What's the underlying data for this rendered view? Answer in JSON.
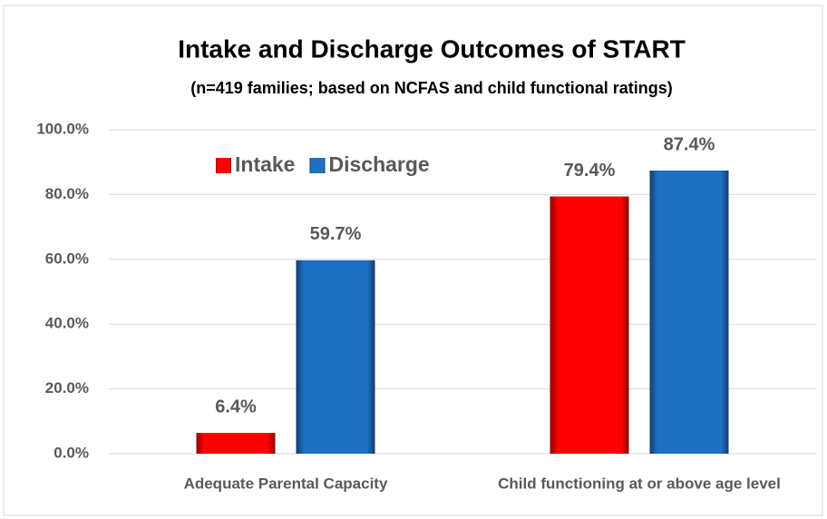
{
  "chart_data": {
    "type": "bar",
    "title": "Intake and Discharge Outcomes of START",
    "subtitle": "(n=419 families; based on NCFAS and child functional ratings)",
    "categories": [
      "Adequate Parental Capacity",
      "Child functioning at or above age level"
    ],
    "series": [
      {
        "name": "Intake",
        "color": "#ff0000",
        "values": [
          6.4,
          79.4
        ],
        "value_labels": [
          "6.4%",
          "79.4%"
        ]
      },
      {
        "name": "Discharge",
        "color": "#1f6fc5",
        "values": [
          59.7,
          87.4
        ],
        "value_labels": [
          "59.7%",
          "87.4%"
        ]
      }
    ],
    "ylim": [
      0,
      100
    ],
    "yticks": [
      {
        "value": 0,
        "label": "0.0%"
      },
      {
        "value": 20,
        "label": "20.0%"
      },
      {
        "value": 40,
        "label": "40.0%"
      },
      {
        "value": 60,
        "label": "60.0%"
      },
      {
        "value": 80,
        "label": "80.0%"
      },
      {
        "value": 100,
        "label": "100.0%"
      }
    ],
    "grid": true
  }
}
